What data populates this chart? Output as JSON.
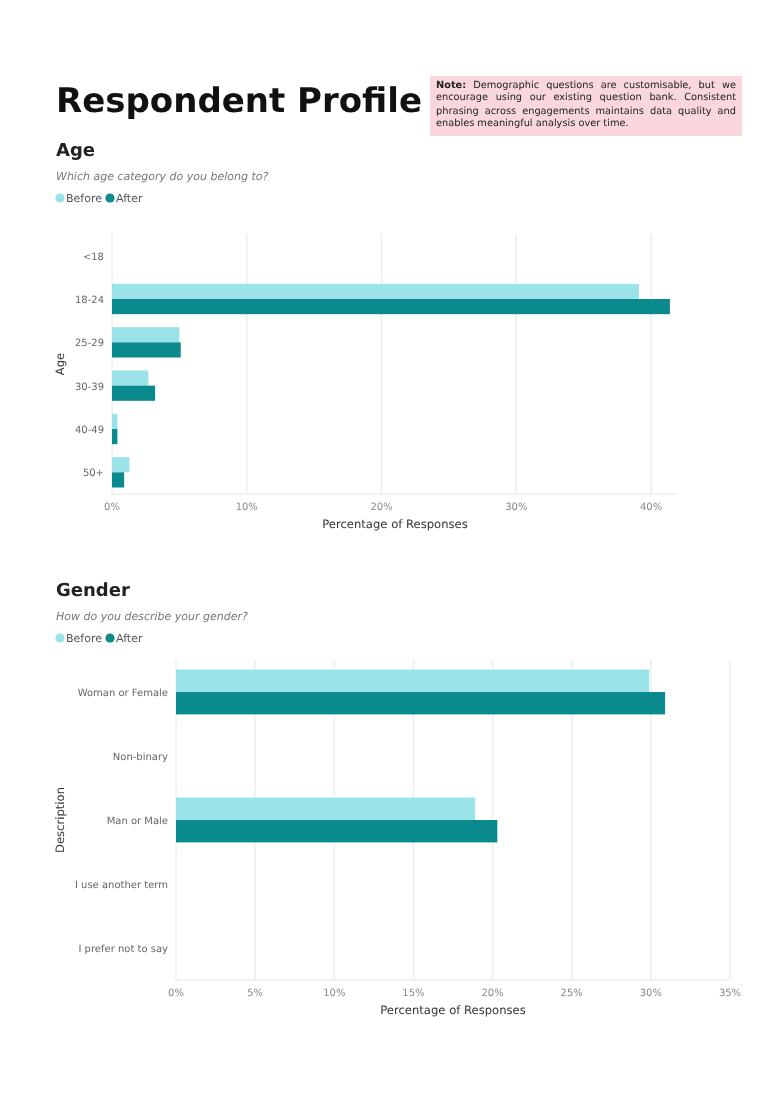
{
  "chart_data": [
    {
      "type": "bar",
      "orientation": "horizontal",
      "title": "Age",
      "subtitle": "Which age category do you belong to?",
      "xlabel": "Percentage of Responses",
      "ylabel": "Age",
      "annotations": [
        "Respondent Profile",
        "Note: Demographic questions are customisable, but we encourage using our existing question bank. Consistent phrasing across engagements maintains data quality and enables meaningful analysis over time."
      ],
      "categories": [
        "<18",
        "18-24",
        "25-29",
        "30-39",
        "40-49",
        "50+"
      ],
      "series": [
        {
          "name": "Before",
          "color": "#9ae3e8",
          "values": [
            0,
            39.1,
            5.0,
            2.7,
            0.4,
            1.3
          ]
        },
        {
          "name": "After",
          "color": "#0b8a8e",
          "values": [
            0,
            41.4,
            5.1,
            3.2,
            0.4,
            0.9
          ]
        }
      ],
      "xlim": [
        0,
        42
      ],
      "xticks": [
        {
          "value": 0,
          "label": "0%"
        },
        {
          "value": 10,
          "label": "10%"
        },
        {
          "value": 20,
          "label": "20%"
        },
        {
          "value": 30,
          "label": "30%"
        },
        {
          "value": 40,
          "label": "40%"
        }
      ],
      "grid": "x",
      "legend": "top left"
    },
    {
      "type": "bar",
      "orientation": "horizontal",
      "title": "Gender",
      "subtitle": "How do you describe your gender?",
      "xlabel": "Percentage of Responses",
      "ylabel": "Description",
      "categories": [
        "Woman or Female",
        "Non-binary",
        "Man or Male",
        "I use another term",
        "I prefer not to say"
      ],
      "series": [
        {
          "name": "Before",
          "color": "#9ae3e8",
          "values": [
            29.9,
            0,
            18.9,
            0,
            0
          ]
        },
        {
          "name": "After",
          "color": "#0b8a8e",
          "values": [
            30.9,
            0,
            20.3,
            0,
            0
          ]
        }
      ],
      "xlim": [
        0,
        35
      ],
      "xticks": [
        {
          "value": 0,
          "label": "0%"
        },
        {
          "value": 5,
          "label": "5%"
        },
        {
          "value": 10,
          "label": "10%"
        },
        {
          "value": 15,
          "label": "15%"
        },
        {
          "value": 20,
          "label": "20%"
        },
        {
          "value": 25,
          "label": "25%"
        },
        {
          "value": 30,
          "label": "30%"
        },
        {
          "value": 35,
          "label": "35%"
        }
      ],
      "grid": "x",
      "legend": "top left"
    }
  ]
}
